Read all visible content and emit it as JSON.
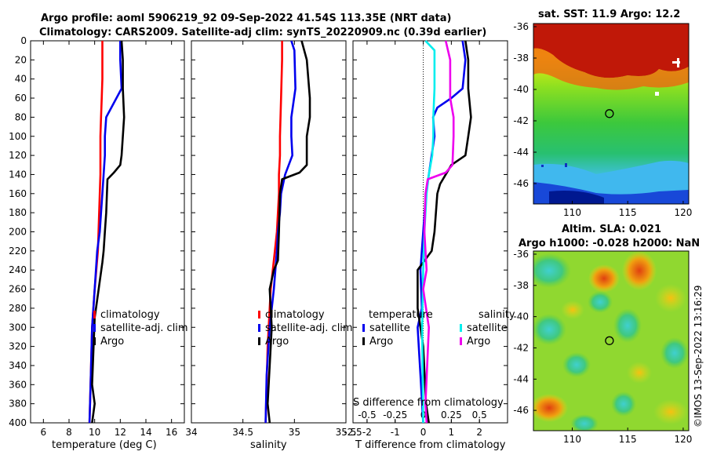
{
  "header": {
    "line1": "Argo profile: aoml 5906219_92 09-Sep-2022 41.54S 113.35E (NRT data)",
    "line2": "Climatology: CARS2009. Satellite-adj clim: synTS_20220909.nc (0.39d earlier)"
  },
  "copyright": "©IMOS 13-Sep-2022 13:16:29",
  "colors": {
    "climatology": "#ff0000",
    "satellite": "#0000ee",
    "argo": "#000000",
    "sat_salinity": "#00eeee",
    "argo_salinity": "#ee00ee"
  },
  "chart_data": [
    {
      "type": "line",
      "id": "temperature",
      "xlabel": "temperature (deg C)",
      "ylabel": "",
      "xlim": [
        5,
        17
      ],
      "ylim": [
        0,
        400
      ],
      "xticks": [
        "6",
        "8",
        "10",
        "12",
        "14",
        "16"
      ],
      "xtick_values": [
        6,
        8,
        10,
        12,
        14,
        16
      ],
      "yticks": [
        "0",
        "20",
        "40",
        "60",
        "80",
        "100",
        "120",
        "140",
        "160",
        "180",
        "200",
        "220",
        "240",
        "260",
        "280",
        "300",
        "320",
        "340",
        "360",
        "380",
        "400"
      ],
      "legend": [
        "climatology",
        "satellite-adj. clim",
        "Argo"
      ],
      "series": [
        {
          "name": "climatology",
          "x": [
            10.6,
            10.6,
            10.6,
            10.55,
            10.5,
            10.45,
            10.45,
            10.45,
            10.4,
            10.35,
            10.3,
            10.25,
            10.0,
            9.8,
            9.7,
            9.6
          ],
          "y": [
            0,
            20,
            40,
            60,
            80,
            100,
            120,
            140,
            160,
            180,
            200,
            220,
            260,
            300,
            350,
            400
          ]
        },
        {
          "name": "satellite-adj. clim",
          "x": [
            12.0,
            12.0,
            12.1,
            11.5,
            10.9,
            10.8,
            10.8,
            10.7,
            10.6,
            10.5,
            10.4,
            10.2,
            10.0,
            9.8,
            9.7,
            9.6
          ],
          "y": [
            0,
            20,
            50,
            65,
            80,
            100,
            120,
            140,
            160,
            180,
            200,
            220,
            260,
            300,
            350,
            400
          ]
        },
        {
          "name": "Argo",
          "x": [
            12.1,
            12.2,
            12.2,
            12.3,
            12.2,
            12.1,
            12.0,
            11.5,
            11.0,
            10.9,
            10.8,
            10.7,
            10.6,
            10.0,
            9.8,
            10.0,
            9.8
          ],
          "y": [
            0,
            20,
            50,
            80,
            100,
            120,
            130,
            138,
            145,
            180,
            200,
            220,
            232,
            290,
            360,
            380,
            400
          ]
        }
      ]
    },
    {
      "type": "line",
      "id": "salinity",
      "xlabel": "salinity",
      "ylabel": "",
      "xlim": [
        34,
        35.5
      ],
      "ylim": [
        0,
        400
      ],
      "xticks": [
        "34",
        "34.5",
        "35",
        "35.5"
      ],
      "xtick_values": [
        34,
        34.5,
        35,
        35.5
      ],
      "legend": [
        "climatology",
        "satellite-adj. clim",
        "Argo"
      ],
      "series": [
        {
          "name": "climatology",
          "x": [
            34.88,
            34.88,
            34.87,
            34.86,
            34.86,
            34.85,
            34.85,
            34.84,
            34.83,
            34.81,
            34.77,
            34.74,
            34.72
          ],
          "y": [
            0,
            20,
            60,
            100,
            120,
            140,
            160,
            180,
            200,
            220,
            260,
            320,
            400
          ]
        },
        {
          "name": "satellite-adj. clim",
          "x": [
            34.97,
            35.0,
            35.01,
            34.97,
            34.97,
            34.98,
            34.91,
            34.87,
            34.86,
            34.84,
            34.83,
            34.8,
            34.76,
            34.73,
            34.72
          ],
          "y": [
            0,
            10,
            50,
            80,
            100,
            120,
            140,
            160,
            180,
            200,
            220,
            260,
            300,
            350,
            400
          ]
        },
        {
          "name": "Argo",
          "x": [
            35.07,
            35.12,
            35.15,
            35.15,
            35.12,
            35.12,
            35.05,
            34.88,
            34.86,
            34.85,
            34.84,
            34.8,
            34.76,
            34.78,
            34.74,
            34.76
          ],
          "y": [
            0,
            20,
            60,
            80,
            100,
            130,
            138,
            145,
            160,
            200,
            230,
            240,
            260,
            300,
            380,
            400
          ]
        }
      ]
    },
    {
      "type": "line",
      "id": "difference",
      "xlabel": "T difference from climatology",
      "top_label": "S difference from climatology",
      "xlim": [
        -2.5,
        3
      ],
      "ylim": [
        0,
        400
      ],
      "xticks": [
        "-2.5",
        "-2",
        "-1",
        "0",
        "1",
        "2"
      ],
      "xtick_values": [
        -2.5,
        -2,
        -1,
        0,
        1,
        2
      ],
      "top_xlim": [
        -0.625,
        0.75
      ],
      "top_xticks": [
        "-0.5",
        "-0.25",
        "0",
        "0.25",
        "0.5"
      ],
      "top_xtick_values": [
        -0.5,
        -0.25,
        0,
        0.25,
        0.5
      ],
      "legend_temperature_title": "temperature",
      "legend_salinity_title": "salinity",
      "legend_temperature": [
        "satellite",
        "Argo"
      ],
      "legend_salinity": [
        "satellite",
        "Argo"
      ],
      "series": [
        {
          "name": "temperature satellite",
          "axis": "T",
          "x": [
            1.4,
            1.5,
            1.4,
            1.0,
            0.5,
            0.35,
            0.4,
            0.3,
            0.2,
            0.1,
            0.0,
            -0.1,
            -0.05,
            -0.2,
            -0.1,
            0.0
          ],
          "y": [
            0,
            20,
            50,
            60,
            70,
            80,
            100,
            120,
            140,
            160,
            200,
            240,
            280,
            300,
            350,
            400
          ]
        },
        {
          "name": "temperature Argo",
          "axis": "T",
          "x": [
            1.5,
            1.6,
            1.6,
            1.7,
            1.6,
            1.5,
            1.0,
            0.8,
            0.6,
            0.5,
            0.4,
            0.3,
            -0.2,
            -0.2,
            0.0,
            0.1,
            0.2
          ],
          "y": [
            0,
            20,
            50,
            80,
            100,
            120,
            130,
            140,
            150,
            160,
            200,
            220,
            240,
            280,
            320,
            380,
            400
          ]
        },
        {
          "name": "salinity satellite",
          "axis": "S",
          "x": [
            0.02,
            0.1,
            0.1,
            0.09,
            0.09,
            0.08,
            0.05,
            0.03,
            0.01,
            0.0,
            -0.01,
            0.0
          ],
          "y": [
            0,
            10,
            50,
            80,
            100,
            120,
            140,
            160,
            200,
            240,
            300,
            400
          ]
        },
        {
          "name": "salinity Argo",
          "axis": "S",
          "x": [
            0.2,
            0.24,
            0.24,
            0.27,
            0.27,
            0.26,
            0.2,
            0.04,
            0.02,
            0.01,
            0.03,
            0.0,
            0.05,
            0.02,
            0.03
          ],
          "y": [
            0,
            20,
            60,
            80,
            100,
            130,
            138,
            145,
            160,
            200,
            240,
            260,
            300,
            380,
            400
          ]
        }
      ]
    },
    {
      "type": "heatmap",
      "id": "sst_map",
      "title": "sat. SST: 11.9 Argo: 12.2",
      "xlim": [
        106.5,
        120.5
      ],
      "ylim": [
        -47.3,
        -35.8
      ],
      "xticks": [
        "110",
        "115",
        "120"
      ],
      "xtick_values": [
        110,
        115,
        120
      ],
      "yticks": [
        "-36",
        "-38",
        "-40",
        "-42",
        "-44",
        "-46"
      ],
      "ytick_values": [
        -36,
        -38,
        -40,
        -42,
        -44,
        -46
      ],
      "profile_location": [
        113.35,
        -41.54
      ]
    },
    {
      "type": "heatmap",
      "id": "sla_map",
      "title_line1": "Altim. SLA: 0.021",
      "title_line2": "Argo h1000: -0.028 h2000: NaN",
      "xlim": [
        106.5,
        120.5
      ],
      "ylim": [
        -47.3,
        -35.8
      ],
      "xticks": [
        "110",
        "115",
        "120"
      ],
      "xtick_values": [
        110,
        115,
        120
      ],
      "yticks": [
        "-36",
        "-38",
        "-40",
        "-42",
        "-44",
        "-46"
      ],
      "ytick_values": [
        -36,
        -38,
        -40,
        -42,
        -44,
        -46
      ],
      "profile_location": [
        113.35,
        -41.54
      ]
    }
  ]
}
